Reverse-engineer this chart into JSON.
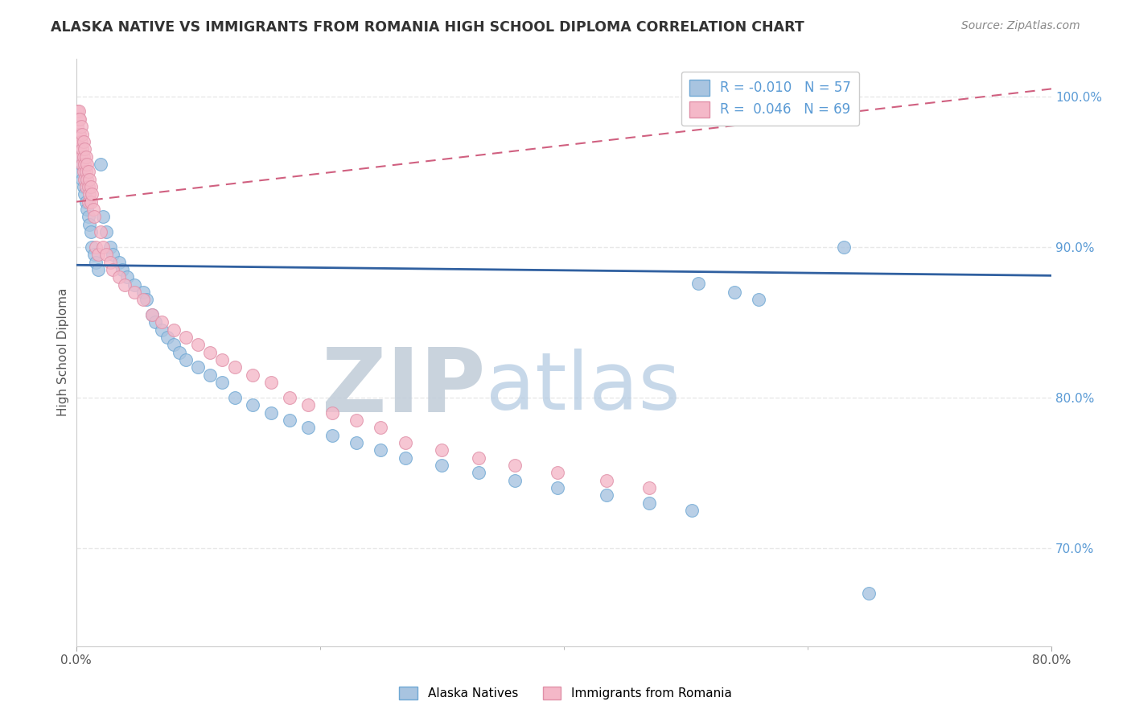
{
  "title": "ALASKA NATIVE VS IMMIGRANTS FROM ROMANIA HIGH SCHOOL DIPLOMA CORRELATION CHART",
  "source": "Source: ZipAtlas.com",
  "ylabel": "High School Diploma",
  "xlim": [
    0.0,
    0.8
  ],
  "ylim": [
    0.635,
    1.025
  ],
  "alaska_color": "#a8c4e0",
  "alaska_edge_color": "#6fa8d4",
  "romania_color": "#f4b8c8",
  "romania_edge_color": "#e090a8",
  "alaska_line_color": "#3060a0",
  "romania_line_color": "#d06080",
  "title_color": "#333333",
  "source_color": "#888888",
  "watermark_zip_color": "#c8d4e0",
  "watermark_atlas_color": "#b8cce0",
  "grid_color": "#e8e8e8",
  "right_tick_color": "#5b9bd5",
  "background_color": "#ffffff",
  "legend_R1": "-0.010",
  "legend_N1": "57",
  "legend_R2": " 0.046",
  "legend_N2": "69",
  "alaska_line_y0": 0.888,
  "alaska_line_y1": 0.881,
  "romania_line_y0": 0.93,
  "romania_line_y1": 1.005,
  "ak_x": [
    0.002,
    0.003,
    0.004,
    0.005,
    0.006,
    0.007,
    0.008,
    0.009,
    0.01,
    0.011,
    0.012,
    0.013,
    0.015,
    0.016,
    0.018,
    0.02,
    0.022,
    0.025,
    0.028,
    0.03,
    0.035,
    0.038,
    0.042,
    0.048,
    0.055,
    0.058,
    0.062,
    0.065,
    0.07,
    0.075,
    0.08,
    0.085,
    0.09,
    0.1,
    0.11,
    0.12,
    0.13,
    0.145,
    0.16,
    0.175,
    0.19,
    0.21,
    0.23,
    0.25,
    0.27,
    0.3,
    0.33,
    0.36,
    0.395,
    0.435,
    0.47,
    0.505,
    0.51,
    0.54,
    0.56,
    0.63,
    0.65
  ],
  "ak_y": [
    0.96,
    0.95,
    0.955,
    0.945,
    0.94,
    0.935,
    0.93,
    0.925,
    0.92,
    0.915,
    0.91,
    0.9,
    0.895,
    0.89,
    0.885,
    0.955,
    0.92,
    0.91,
    0.9,
    0.895,
    0.89,
    0.885,
    0.88,
    0.875,
    0.87,
    0.865,
    0.855,
    0.85,
    0.845,
    0.84,
    0.835,
    0.83,
    0.825,
    0.82,
    0.815,
    0.81,
    0.8,
    0.795,
    0.79,
    0.785,
    0.78,
    0.775,
    0.77,
    0.765,
    0.76,
    0.755,
    0.75,
    0.745,
    0.74,
    0.735,
    0.73,
    0.725,
    0.876,
    0.87,
    0.865,
    0.9,
    0.67
  ],
  "ro_x": [
    0.001,
    0.001,
    0.001,
    0.002,
    0.002,
    0.002,
    0.003,
    0.003,
    0.003,
    0.004,
    0.004,
    0.004,
    0.005,
    0.005,
    0.005,
    0.006,
    0.006,
    0.006,
    0.007,
    0.007,
    0.007,
    0.008,
    0.008,
    0.008,
    0.009,
    0.009,
    0.01,
    0.01,
    0.01,
    0.011,
    0.011,
    0.012,
    0.012,
    0.013,
    0.014,
    0.015,
    0.016,
    0.018,
    0.02,
    0.022,
    0.025,
    0.028,
    0.03,
    0.035,
    0.04,
    0.048,
    0.055,
    0.062,
    0.07,
    0.08,
    0.09,
    0.1,
    0.11,
    0.12,
    0.13,
    0.145,
    0.16,
    0.175,
    0.19,
    0.21,
    0.23,
    0.25,
    0.27,
    0.3,
    0.33,
    0.36,
    0.395,
    0.435,
    0.47
  ],
  "ro_y": [
    0.99,
    0.98,
    0.97,
    0.99,
    0.985,
    0.975,
    0.985,
    0.975,
    0.965,
    0.98,
    0.97,
    0.96,
    0.975,
    0.965,
    0.955,
    0.97,
    0.96,
    0.95,
    0.965,
    0.955,
    0.945,
    0.96,
    0.95,
    0.94,
    0.955,
    0.945,
    0.95,
    0.94,
    0.93,
    0.945,
    0.935,
    0.94,
    0.93,
    0.935,
    0.925,
    0.92,
    0.9,
    0.895,
    0.91,
    0.9,
    0.895,
    0.89,
    0.885,
    0.88,
    0.875,
    0.87,
    0.865,
    0.855,
    0.85,
    0.845,
    0.84,
    0.835,
    0.83,
    0.825,
    0.82,
    0.815,
    0.81,
    0.8,
    0.795,
    0.79,
    0.785,
    0.78,
    0.77,
    0.765,
    0.76,
    0.755,
    0.75,
    0.745,
    0.74
  ]
}
